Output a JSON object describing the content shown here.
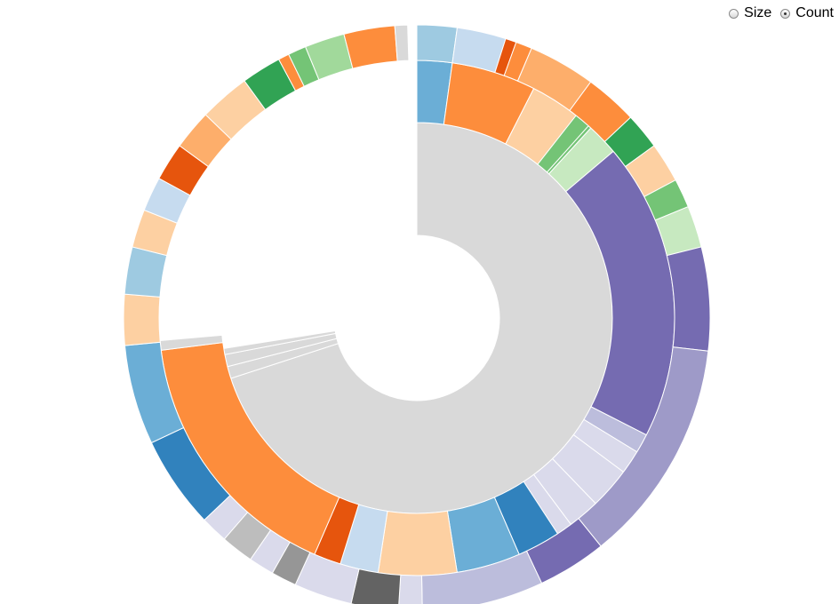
{
  "controls": {
    "options": [
      {
        "label": "Size",
        "checked": false
      },
      {
        "label": "Count",
        "checked": true
      }
    ]
  },
  "chart_data": {
    "type": "sunburst",
    "value_mode": "Count",
    "rings": [
      {
        "depth": 1,
        "segments": [
          {
            "start": 0.0,
            "end": 0.7,
            "color": "#d9d9d9"
          },
          {
            "start": 0.7,
            "end": 0.71,
            "color": "#d9d9d9"
          },
          {
            "start": 0.71,
            "end": 0.72,
            "color": "#d9d9d9"
          },
          {
            "start": 0.72,
            "end": 0.725,
            "color": "#d9d9d9"
          }
        ]
      },
      {
        "depth": 2,
        "segments": [
          {
            "start": 0.0,
            "end": 0.022,
            "color": "#6baed6"
          },
          {
            "start": 0.022,
            "end": 0.075,
            "color": "#fd8d3c"
          },
          {
            "start": 0.075,
            "end": 0.106,
            "color": "#fdd0a2"
          },
          {
            "start": 0.106,
            "end": 0.116,
            "color": "#74c476"
          },
          {
            "start": 0.116,
            "end": 0.118,
            "color": "#74c476"
          },
          {
            "start": 0.118,
            "end": 0.138,
            "color": "#c7e9c0"
          },
          {
            "start": 0.138,
            "end": 0.325,
            "color": "#756bb1"
          },
          {
            "start": 0.325,
            "end": 0.337,
            "color": "#bcbddc"
          },
          {
            "start": 0.337,
            "end": 0.352,
            "color": "#dadaeb"
          },
          {
            "start": 0.352,
            "end": 0.378,
            "color": "#dadaeb"
          },
          {
            "start": 0.378,
            "end": 0.398,
            "color": "#dadaeb"
          },
          {
            "start": 0.398,
            "end": 0.408,
            "color": "#dadaeb"
          },
          {
            "start": 0.408,
            "end": 0.435,
            "color": "#3182bd"
          },
          {
            "start": 0.435,
            "end": 0.475,
            "color": "#6baed6"
          },
          {
            "start": 0.475,
            "end": 0.524,
            "color": "#fdd0a2"
          },
          {
            "start": 0.524,
            "end": 0.548,
            "color": "#c6dbef"
          },
          {
            "start": 0.548,
            "end": 0.565,
            "color": "#e6550d"
          },
          {
            "start": 0.565,
            "end": 0.73,
            "color": "#fd8d3c"
          },
          {
            "start": 0.73,
            "end": 0.736,
            "color": "#d9d9d9"
          }
        ]
      },
      {
        "depth": 3,
        "segments": [
          {
            "start": 0.0,
            "end": 0.022,
            "color": "#9ecae1"
          },
          {
            "start": 0.022,
            "end": 0.049,
            "color": "#c6dbef"
          },
          {
            "start": 0.049,
            "end": 0.055,
            "color": "#e6550d"
          },
          {
            "start": 0.055,
            "end": 0.064,
            "color": "#fd8d3c"
          },
          {
            "start": 0.064,
            "end": 0.101,
            "color": "#fdae6b"
          },
          {
            "start": 0.101,
            "end": 0.13,
            "color": "#fd8d3c"
          },
          {
            "start": 0.13,
            "end": 0.15,
            "color": "#31a354"
          },
          {
            "start": 0.15,
            "end": 0.172,
            "color": "#fdd0a2"
          },
          {
            "start": 0.172,
            "end": 0.188,
            "color": "#74c476"
          },
          {
            "start": 0.188,
            "end": 0.211,
            "color": "#c7e9c0"
          },
          {
            "start": 0.211,
            "end": 0.268,
            "color": "#756bb1"
          },
          {
            "start": 0.268,
            "end": 0.392,
            "color": "#9e9ac8"
          },
          {
            "start": 0.392,
            "end": 0.43,
            "color": "#756bb1"
          },
          {
            "start": 0.43,
            "end": 0.497,
            "color": "#bcbddc"
          },
          {
            "start": 0.497,
            "end": 0.51,
            "color": "#dadaeb"
          },
          {
            "start": 0.51,
            "end": 0.536,
            "color": "#636363"
          },
          {
            "start": 0.536,
            "end": 0.568,
            "color": "#dadaeb"
          },
          {
            "start": 0.568,
            "end": 0.582,
            "color": "#969696"
          },
          {
            "start": 0.582,
            "end": 0.596,
            "color": "#dadaeb"
          },
          {
            "start": 0.596,
            "end": 0.614,
            "color": "#bdbdbd"
          },
          {
            "start": 0.614,
            "end": 0.629,
            "color": "#dadaeb"
          },
          {
            "start": 0.629,
            "end": 0.68,
            "color": "#3182bd"
          },
          {
            "start": 0.68,
            "end": 0.735,
            "color": "#6baed6"
          },
          {
            "start": 0.735,
            "end": 0.763,
            "color": "#fdd0a2"
          },
          {
            "start": 0.763,
            "end": 0.789,
            "color": "#9ecae1"
          },
          {
            "start": 0.789,
            "end": 0.81,
            "color": "#fdd0a2"
          },
          {
            "start": 0.81,
            "end": 0.829,
            "color": "#c6dbef"
          },
          {
            "start": 0.829,
            "end": 0.85,
            "color": "#e6550d"
          },
          {
            "start": 0.85,
            "end": 0.872,
            "color": "#fdae6b"
          },
          {
            "start": 0.872,
            "end": 0.9,
            "color": "#fdd0a2"
          },
          {
            "start": 0.9,
            "end": 0.922,
            "color": "#31a354"
          },
          {
            "start": 0.922,
            "end": 0.928,
            "color": "#fd8d3c"
          },
          {
            "start": 0.928,
            "end": 0.938,
            "color": "#74c476"
          },
          {
            "start": 0.938,
            "end": 0.96,
            "color": "#a1d99b"
          },
          {
            "start": 0.96,
            "end": 0.988,
            "color": "#fd8d3c"
          },
          {
            "start": 0.988,
            "end": 0.995,
            "color": "#d9d9d9"
          }
        ]
      }
    ]
  }
}
